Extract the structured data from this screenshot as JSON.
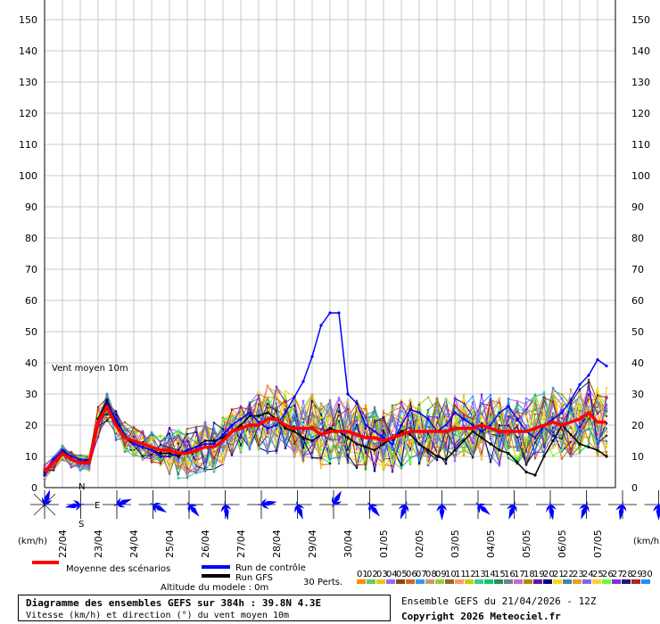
{
  "chart_data": {
    "type": "line",
    "title": "Diagramme des ensembles GEFS sur 384h : 39.8N 4.3E",
    "subtitle": "Vitesse (km/h) et direction (°) du vent moyen 10m",
    "annotation": "Vent moyen 10m",
    "ylabel_left": "(km/h)",
    "ylabel_right": "(km/h)",
    "ylim": [
      0,
      150
    ],
    "yticks": [
      0,
      10,
      20,
      30,
      40,
      50,
      60,
      70,
      80,
      90,
      100,
      110,
      120,
      130,
      140,
      150
    ],
    "xlim": [
      0,
      384
    ],
    "xtick_labels": [
      "22/04",
      "23/04",
      "24/04",
      "25/04",
      "26/04",
      "27/04",
      "28/04",
      "29/04",
      "30/04",
      "01/05",
      "02/05",
      "03/05",
      "04/05",
      "05/05",
      "06/05",
      "07/05"
    ],
    "xtick_hours": [
      12,
      36,
      60,
      84,
      108,
      132,
      156,
      180,
      204,
      228,
      252,
      276,
      300,
      324,
      348,
      372
    ],
    "grid": true,
    "step_hours": 6,
    "series": [
      {
        "name": "Moyenne des scénarios",
        "color": "#ff0000",
        "values": [
          5,
          8,
          11,
          9,
          8,
          8,
          21,
          26,
          20,
          16,
          15,
          14,
          13,
          12,
          12,
          11,
          11,
          12,
          13,
          13,
          15,
          18,
          19,
          20,
          20,
          22,
          22,
          20,
          19,
          19,
          19,
          17,
          18,
          18,
          18,
          17,
          16,
          16,
          15,
          16,
          17,
          18,
          18,
          18,
          18,
          18,
          19,
          19,
          19,
          20,
          19,
          18,
          18,
          18,
          18,
          19,
          20,
          21,
          20,
          21,
          22,
          24,
          21,
          21
        ]
      },
      {
        "name": "Run de contrôle",
        "color": "#0000ff",
        "values": [
          4,
          9,
          12,
          10,
          9,
          9,
          20,
          27,
          22,
          17,
          14,
          13,
          12,
          10,
          10,
          11,
          12,
          13,
          14,
          14,
          17,
          20,
          22,
          24,
          21,
          19,
          20,
          24,
          29,
          34,
          42,
          52,
          56,
          56,
          30,
          27,
          20,
          18,
          16,
          14,
          20,
          25,
          24,
          22,
          18,
          20,
          24,
          22,
          20,
          18,
          20,
          24,
          26,
          22,
          18,
          16,
          20,
          22,
          24,
          28,
          33,
          36,
          41,
          39
        ]
      },
      {
        "name": "Run GFS",
        "color": "#000000",
        "values": [
          5,
          9,
          12,
          9,
          8,
          9,
          22,
          28,
          21,
          16,
          14,
          13,
          12,
          11,
          11,
          10,
          12,
          13,
          15,
          15,
          16,
          18,
          20,
          23,
          23,
          24,
          22,
          19,
          18,
          16,
          15,
          17,
          19,
          18,
          16,
          14,
          13,
          12,
          14,
          16,
          18,
          17,
          14,
          12,
          10,
          9,
          12,
          15,
          18,
          16,
          14,
          12,
          11,
          8,
          5,
          4,
          10,
          15,
          20,
          17,
          14,
          13,
          12,
          10
        ]
      }
    ],
    "members_count": 30,
    "member_colors": [
      "#ff8c00",
      "#66cc66",
      "#e6c619",
      "#9966ff",
      "#8b4513",
      "#d2691e",
      "#3399ff",
      "#cc9966",
      "#9acd32",
      "#996633",
      "#ff9966",
      "#cccc00",
      "#33cc99",
      "#00cc66",
      "#2e8b57",
      "#708090",
      "#cc66cc",
      "#b8860b",
      "#6a0dad",
      "#000080",
      "#ffd700",
      "#4682b4",
      "#daa520",
      "#7b68ee",
      "#ffcc33",
      "#66ff33",
      "#8a2be2",
      "#191970",
      "#b22222",
      "#1e90ff"
    ],
    "wind_direction_deg": [
      20,
      260,
      70,
      120,
      140,
      170,
      80,
      160,
      30,
      140,
      200,
      180,
      130,
      200,
      170,
      200,
      190,
      180,
      190,
      200
    ]
  },
  "footer": {
    "title": "Diagramme des ensembles GEFS sur 384h : 39.8N 4.3E",
    "subtitle": "Vitesse (km/h) et direction (°) du vent moyen 10m",
    "altitude": "Altitude du modele : 0m",
    "ensemble_info": "Ensemble GEFS du 21/04/2026 - 12Z",
    "copyright": "Copyright 2026 Meteociel.fr"
  },
  "legend": {
    "mean_label": "Moyenne des scénarios",
    "control_label": "Run de contrôle",
    "gfs_label": "Run GFS",
    "perts_label": "30 Perts.",
    "pert_numbers": [
      "01",
      "02",
      "03",
      "04",
      "05",
      "06",
      "07",
      "08",
      "09",
      "10",
      "11",
      "12",
      "13",
      "14",
      "15",
      "16",
      "17",
      "18",
      "19",
      "20",
      "21",
      "22",
      "23",
      "24",
      "25",
      "26",
      "27",
      "28",
      "29",
      "30"
    ]
  },
  "compass": {
    "n": "N",
    "e": "E",
    "s": "S"
  },
  "colors": {
    "mean": "#ff0000",
    "control": "#0000ff",
    "gfs": "#000000",
    "grid": "#c8c8c8",
    "rose": "#0000ff"
  }
}
